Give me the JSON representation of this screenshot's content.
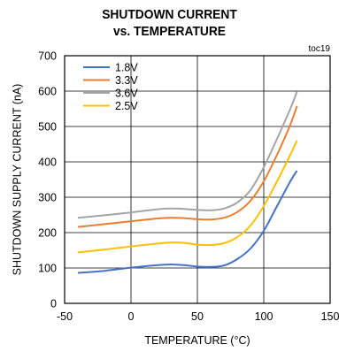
{
  "page": {
    "title_line1": "SHUTDOWN CURRENT",
    "title_line2": "vs. TEMPERATURE",
    "figure_id": "toc19"
  },
  "chart_data": {
    "type": "line",
    "title": "SHUTDOWN CURRENT vs. TEMPERATURE",
    "xlabel": "TEMPERATURE (°C)",
    "ylabel": "SHUTDOWN SUPPLY CURRENT (nA)",
    "xlim": [
      -50,
      150
    ],
    "ylim": [
      0,
      700
    ],
    "xticks": [
      -50,
      0,
      50,
      100,
      150
    ],
    "yticks": [
      0,
      100,
      200,
      300,
      400,
      500,
      600,
      700
    ],
    "grid": true,
    "legend_position": "top-left",
    "series": [
      {
        "name": "1.8V",
        "color": "#4472c4",
        "x": [
          -40,
          -20,
          0,
          20,
          30,
          40,
          50,
          60,
          70,
          80,
          90,
          100,
          110,
          120,
          125
        ],
        "y": [
          86,
          92,
          101,
          108,
          110,
          108,
          104,
          103,
          107,
          125,
          155,
          205,
          275,
          345,
          375
        ]
      },
      {
        "name": "3.3V",
        "color": "#ed7d31",
        "x": [
          -40,
          -20,
          0,
          20,
          30,
          40,
          50,
          60,
          70,
          80,
          90,
          100,
          110,
          120,
          125
        ],
        "y": [
          216,
          224,
          232,
          240,
          242,
          241,
          238,
          237,
          242,
          258,
          290,
          345,
          420,
          505,
          558
        ]
      },
      {
        "name": "3.6V",
        "color": "#a5a5a5",
        "x": [
          -40,
          -20,
          0,
          20,
          30,
          40,
          50,
          60,
          70,
          80,
          90,
          100,
          110,
          120,
          125
        ],
        "y": [
          242,
          249,
          257,
          266,
          268,
          267,
          264,
          263,
          268,
          285,
          320,
          385,
          465,
          550,
          598
        ]
      },
      {
        "name": "2.5V",
        "color": "#ffc000",
        "x": [
          -40,
          -20,
          0,
          20,
          30,
          40,
          50,
          60,
          70,
          80,
          90,
          100,
          110,
          120,
          125
        ],
        "y": [
          144,
          152,
          161,
          169,
          172,
          171,
          166,
          165,
          170,
          187,
          220,
          275,
          345,
          420,
          460
        ]
      }
    ]
  }
}
